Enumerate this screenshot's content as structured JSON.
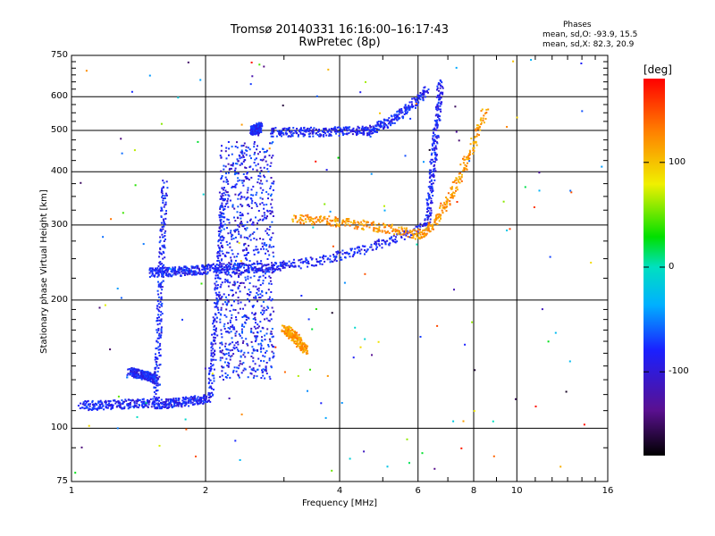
{
  "chart_data": {
    "type": "scatter",
    "title": "Tromsø 20140331 16:16:00–16:17:43",
    "subtitle": "RwPretec (8p)",
    "xlabel": "Frequency [MHz]",
    "ylabel": "Stationary phase Virtual Height [km]",
    "x_scale": "log",
    "y_scale": "log",
    "xlim": [
      1,
      16
    ],
    "ylim": [
      75,
      750
    ],
    "x_ticks": [
      1,
      2,
      4,
      6,
      8,
      10,
      16
    ],
    "x_tick_labels": [
      "1",
      "2",
      "4",
      "6",
      "8",
      "10",
      "16"
    ],
    "x_minor_ticks": [
      3,
      5,
      7,
      9,
      11,
      12,
      13,
      14,
      15
    ],
    "y_ticks": [
      75,
      100,
      200,
      300,
      400,
      500,
      600,
      750
    ],
    "y_tick_labels": [
      "75",
      "100",
      "200",
      "300",
      "400",
      "500",
      "600",
      "750"
    ],
    "y_minor_ticks": [
      90,
      110,
      120,
      130,
      140,
      150,
      160,
      170,
      180,
      190,
      225,
      250,
      275,
      325,
      350,
      375,
      425,
      450,
      475,
      525,
      550,
      575,
      625,
      650,
      675,
      700,
      725
    ],
    "grid": true,
    "legend": {
      "title": "Phases",
      "lines": [
        "mean, sd,O: -93.9, 15.5",
        "mean, sd,X:  82.3, 20.9"
      ],
      "position": "top-right"
    },
    "colorbar": {
      "label": "[deg]",
      "range": [
        -180,
        180
      ],
      "ticks": [
        100,
        0,
        -100
      ],
      "tick_labels": [
        "100",
        "0",
        "-100"
      ],
      "position": "right"
    },
    "trace_descriptions": [
      {
        "f_start": 1.05,
        "f_end": 1.55,
        "h_start": 113,
        "h_end": 115,
        "phase": -100
      },
      {
        "f_start": 1.55,
        "f_end": 1.62,
        "h_start": 115,
        "h_end": 380,
        "phase": -100
      },
      {
        "f_start": 1.35,
        "f_end": 1.55,
        "h_start": 135,
        "h_end": 130,
        "phase": -100
      },
      {
        "f_start": 1.55,
        "f_end": 2.05,
        "h_start": 114,
        "h_end": 118,
        "phase": -100
      },
      {
        "f_start": 2.05,
        "f_end": 2.2,
        "h_start": 118,
        "h_end": 360,
        "phase": -100
      },
      {
        "f_start": 1.5,
        "f_end": 2.0,
        "h_start": 232,
        "h_end": 236,
        "phase": -100
      },
      {
        "f_start": 2.0,
        "f_end": 3.0,
        "h_start": 237,
        "h_end": 239,
        "phase": -100
      },
      {
        "f_start": 2.55,
        "f_end": 2.65,
        "h_start": 500,
        "h_end": 510,
        "phase": -100
      },
      {
        "f_start": 2.8,
        "f_end": 4.5,
        "h_start": 495,
        "h_end": 498,
        "phase": -100
      },
      {
        "f_start": 4.5,
        "f_end": 6.3,
        "h_start": 498,
        "h_end": 620,
        "phase": -100
      },
      {
        "f_start": 3.0,
        "f_end": 6.3,
        "h_start": 242,
        "h_end": 300,
        "phase": -100
      },
      {
        "f_start": 6.3,
        "f_end": 6.75,
        "h_start": 300,
        "h_end": 650,
        "phase": -100
      },
      {
        "f_start": 3.0,
        "f_end": 3.35,
        "h_start": 170,
        "h_end": 152,
        "phase": 120
      },
      {
        "f_start": 3.15,
        "f_end": 6.0,
        "h_start": 310,
        "h_end": 285,
        "phase": 120
      },
      {
        "f_start": 6.0,
        "f_end": 8.5,
        "h_start": 285,
        "h_end": 560,
        "phase": 120
      }
    ]
  }
}
